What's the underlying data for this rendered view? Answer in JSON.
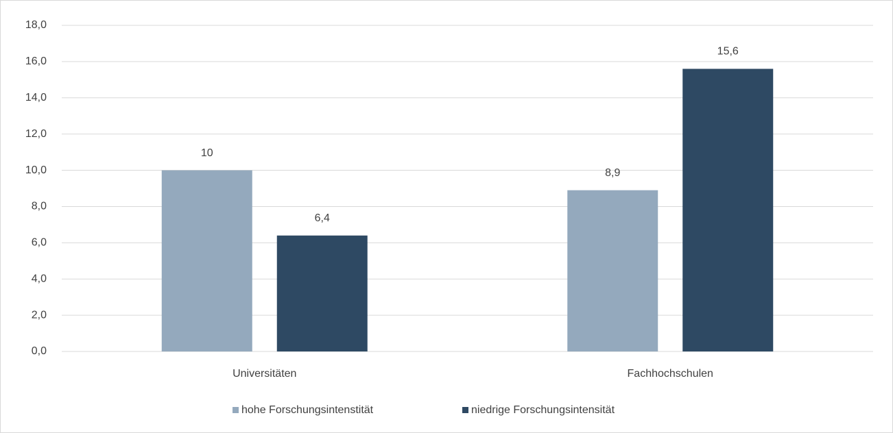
{
  "chart_data": {
    "type": "bar",
    "categories": [
      "Universitäten",
      "Fachhochschulen"
    ],
    "series": [
      {
        "name": "hohe Forschungsintenstität",
        "color": "#94a9bd",
        "values": [
          10,
          8.9
        ],
        "value_labels": [
          "10",
          "8,9"
        ]
      },
      {
        "name": "niedrige Forschungsintensität",
        "color": "#2e4963",
        "values": [
          6.4,
          15.6
        ],
        "value_labels": [
          "6,4",
          "15,6"
        ]
      }
    ],
    "ylim": [
      0,
      18
    ],
    "yticks": [
      {
        "value": 0,
        "label": "0,0"
      },
      {
        "value": 2,
        "label": "2,0"
      },
      {
        "value": 4,
        "label": "4,0"
      },
      {
        "value": 6,
        "label": "6,0"
      },
      {
        "value": 8,
        "label": "8,0"
      },
      {
        "value": 10,
        "label": "10,0"
      },
      {
        "value": 12,
        "label": "12,0"
      },
      {
        "value": 14,
        "label": "14,0"
      },
      {
        "value": 16,
        "label": "16,0"
      },
      {
        "value": 18,
        "label": "18,0"
      }
    ],
    "grid": true,
    "legend": "bottom"
  }
}
